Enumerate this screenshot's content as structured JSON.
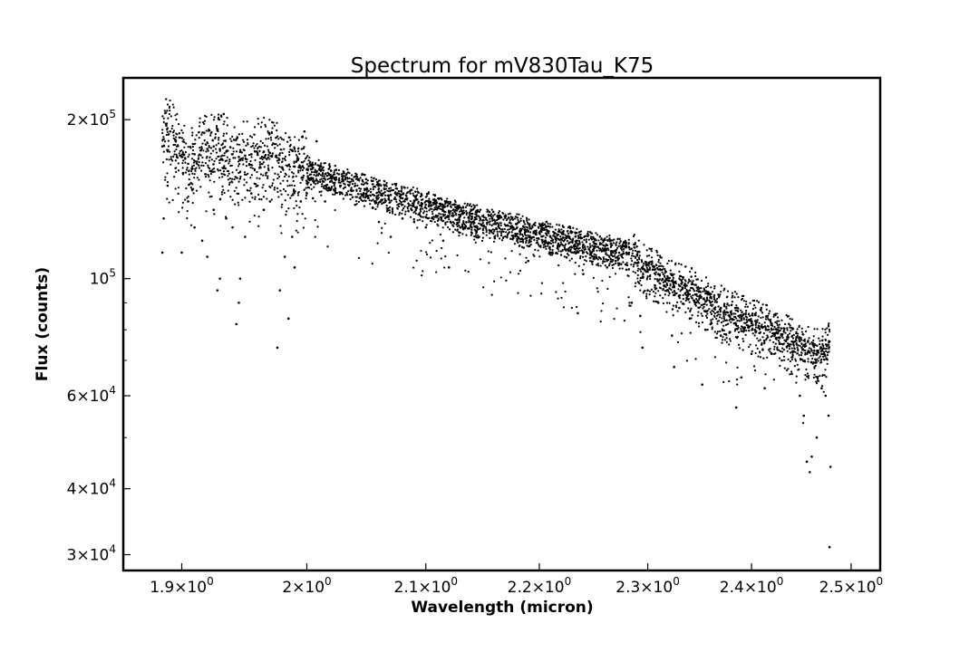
{
  "chart_data": {
    "type": "scatter",
    "title": "Spectrum for mV830Tau_K75",
    "xlabel": "Wavelength (micron)",
    "ylabel": "Flux (counts)",
    "x_scale": "log",
    "y_scale": "log",
    "xlim": [
      1.855,
      2.53
    ],
    "ylim": [
      28000,
      240000
    ],
    "x_ticks": [
      {
        "value": 1.9,
        "mantissa": "1.9",
        "base": "10",
        "exp": "0"
      },
      {
        "value": 2.0,
        "mantissa": "2",
        "base": "10",
        "exp": "0"
      },
      {
        "value": 2.1,
        "mantissa": "2.1",
        "base": "10",
        "exp": "0"
      },
      {
        "value": 2.2,
        "mantissa": "2.2",
        "base": "10",
        "exp": "0"
      },
      {
        "value": 2.3,
        "mantissa": "2.3",
        "base": "10",
        "exp": "0"
      },
      {
        "value": 2.4,
        "mantissa": "2.4",
        "base": "10",
        "exp": "0"
      },
      {
        "value": 2.5,
        "mantissa": "2.5",
        "base": "10",
        "exp": "0"
      }
    ],
    "y_ticks": [
      {
        "value": 30000,
        "mantissa": "3",
        "base": "10",
        "exp": "4"
      },
      {
        "value": 40000,
        "mantissa": "4",
        "base": "10",
        "exp": "4"
      },
      {
        "value": 60000,
        "mantissa": "6",
        "base": "10",
        "exp": "4"
      },
      {
        "value": 100000,
        "mantissa": "",
        "base": "10",
        "exp": "5"
      },
      {
        "value": 200000,
        "mantissa": "2",
        "base": "10",
        "exp": "5"
      }
    ],
    "y_minor_ticks": [
      50000,
      70000,
      80000,
      90000
    ],
    "grid": false,
    "legend": "none",
    "marker_color": "#000000",
    "series": [
      {
        "values": [
          [
            1.885,
            178000
          ],
          [
            1.888,
            195000
          ],
          [
            1.891,
            190000
          ],
          [
            1.895,
            183000
          ],
          [
            1.9,
            170000
          ],
          [
            1.905,
            165000
          ],
          [
            1.91,
            172000
          ],
          [
            1.915,
            175000
          ],
          [
            1.92,
            176000
          ],
          [
            1.925,
            178000
          ],
          [
            1.93,
            176000
          ],
          [
            1.935,
            174000
          ],
          [
            1.94,
            172000
          ],
          [
            1.945,
            170000
          ],
          [
            1.95,
            171000
          ],
          [
            1.955,
            172000
          ],
          [
            1.96,
            173000
          ],
          [
            1.965,
            174000
          ],
          [
            1.97,
            173000
          ],
          [
            1.975,
            171000
          ],
          [
            1.98,
            162000
          ],
          [
            1.985,
            164000
          ],
          [
            1.99,
            163000
          ],
          [
            1.995,
            162000
          ],
          [
            2.0,
            161000
          ],
          [
            2.01,
            158000
          ],
          [
            2.02,
            155000
          ],
          [
            2.03,
            153000
          ],
          [
            2.04,
            150000
          ],
          [
            2.05,
            148000
          ],
          [
            2.06,
            146000
          ],
          [
            2.07,
            144000
          ],
          [
            2.08,
            142000
          ],
          [
            2.09,
            140000
          ],
          [
            2.1,
            138000
          ],
          [
            2.11,
            136000
          ],
          [
            2.12,
            134000
          ],
          [
            2.13,
            132000
          ],
          [
            2.14,
            130000
          ],
          [
            2.15,
            129000
          ],
          [
            2.16,
            127000
          ],
          [
            2.17,
            126000
          ],
          [
            2.18,
            125000
          ],
          [
            2.19,
            123000
          ],
          [
            2.2,
            122000
          ],
          [
            2.21,
            120000
          ],
          [
            2.22,
            119000
          ],
          [
            2.23,
            118000
          ],
          [
            2.24,
            116000
          ],
          [
            2.25,
            115000
          ],
          [
            2.26,
            114000
          ],
          [
            2.27,
            113000
          ],
          [
            2.28,
            112000
          ],
          [
            2.29,
            111000
          ],
          [
            2.295,
            105000
          ],
          [
            2.3,
            104000
          ],
          [
            2.31,
            102000
          ],
          [
            2.32,
            99000
          ],
          [
            2.33,
            97000
          ],
          [
            2.34,
            95000
          ],
          [
            2.35,
            93000
          ],
          [
            2.36,
            90000
          ],
          [
            2.37,
            88000
          ],
          [
            2.38,
            86000
          ],
          [
            2.39,
            84000
          ],
          [
            2.4,
            83000
          ],
          [
            2.41,
            81000
          ],
          [
            2.42,
            80000
          ],
          [
            2.43,
            78000
          ],
          [
            2.44,
            76000
          ],
          [
            2.45,
            74000
          ],
          [
            2.46,
            73000
          ],
          [
            2.47,
            72000
          ],
          [
            2.478,
            76000
          ]
        ],
        "absorption_features": [
          [
            1.885,
            112000
          ],
          [
            1.886,
            130000
          ],
          [
            1.889,
            150000
          ],
          [
            1.9,
            112000
          ],
          [
            1.905,
            140000
          ],
          [
            1.91,
            125000
          ],
          [
            1.916,
            118000
          ],
          [
            1.92,
            110000
          ],
          [
            1.925,
            135000
          ],
          [
            1.928,
            95000
          ],
          [
            1.93,
            100000
          ],
          [
            1.935,
            130000
          ],
          [
            1.94,
            125000
          ],
          [
            1.943,
            82000
          ],
          [
            1.945,
            90000
          ],
          [
            1.946,
            100000
          ],
          [
            1.95,
            120000
          ],
          [
            1.955,
            145000
          ],
          [
            1.96,
            150000
          ],
          [
            1.965,
            135000
          ],
          [
            1.97,
            140000
          ],
          [
            1.976,
            74000
          ],
          [
            1.978,
            95000
          ],
          [
            1.982,
            110000
          ],
          [
            1.985,
            84000
          ],
          [
            1.988,
            120000
          ],
          [
            1.99,
            105000
          ],
          [
            1.995,
            140000
          ],
          [
            2.0,
            145000
          ],
          [
            2.005,
            142000
          ],
          [
            2.015,
            140000
          ],
          [
            2.04,
            138000
          ],
          [
            2.06,
            128000
          ],
          [
            2.07,
            120000
          ],
          [
            2.08,
            130000
          ],
          [
            2.09,
            128000
          ],
          [
            2.1,
            125000
          ],
          [
            2.115,
            118000
          ],
          [
            2.12,
            105000
          ],
          [
            2.13,
            125000
          ],
          [
            2.14,
            122000
          ],
          [
            2.16,
            120000
          ],
          [
            2.18,
            118000
          ],
          [
            2.19,
            108000
          ],
          [
            2.21,
            112000
          ],
          [
            2.235,
            86000
          ],
          [
            2.24,
            102000
          ],
          [
            2.25,
            110000
          ],
          [
            2.262,
            105000
          ],
          [
            2.27,
            108000
          ],
          [
            2.28,
            104000
          ],
          [
            2.285,
            90000
          ],
          [
            2.293,
            85000
          ],
          [
            2.295,
            74000
          ],
          [
            2.3,
            95000
          ],
          [
            2.31,
            90000
          ],
          [
            2.323,
            78000
          ],
          [
            2.325,
            68000
          ],
          [
            2.33,
            88000
          ],
          [
            2.34,
            84000
          ],
          [
            2.352,
            63000
          ],
          [
            2.355,
            80000
          ],
          [
            2.36,
            82000
          ],
          [
            2.37,
            78000
          ],
          [
            2.385,
            57000
          ],
          [
            2.39,
            65000
          ],
          [
            2.4,
            72000
          ],
          [
            2.41,
            75000
          ],
          [
            2.413,
            62000
          ],
          [
            2.42,
            72000
          ],
          [
            2.43,
            70000
          ],
          [
            2.44,
            66000
          ],
          [
            2.448,
            60000
          ],
          [
            2.452,
            55000
          ],
          [
            2.455,
            45000
          ],
          [
            2.458,
            43000
          ],
          [
            2.46,
            46000
          ],
          [
            2.465,
            50000
          ],
          [
            2.47,
            62000
          ],
          [
            2.474,
            60000
          ],
          [
            2.477,
            55000
          ],
          [
            2.479,
            44000
          ],
          [
            2.478,
            31000
          ]
        ],
        "outliers": [
          [
            1.933,
            205000
          ],
          [
            1.998,
            190000
          ],
          [
            2.008,
            182000
          ]
        ]
      }
    ]
  }
}
